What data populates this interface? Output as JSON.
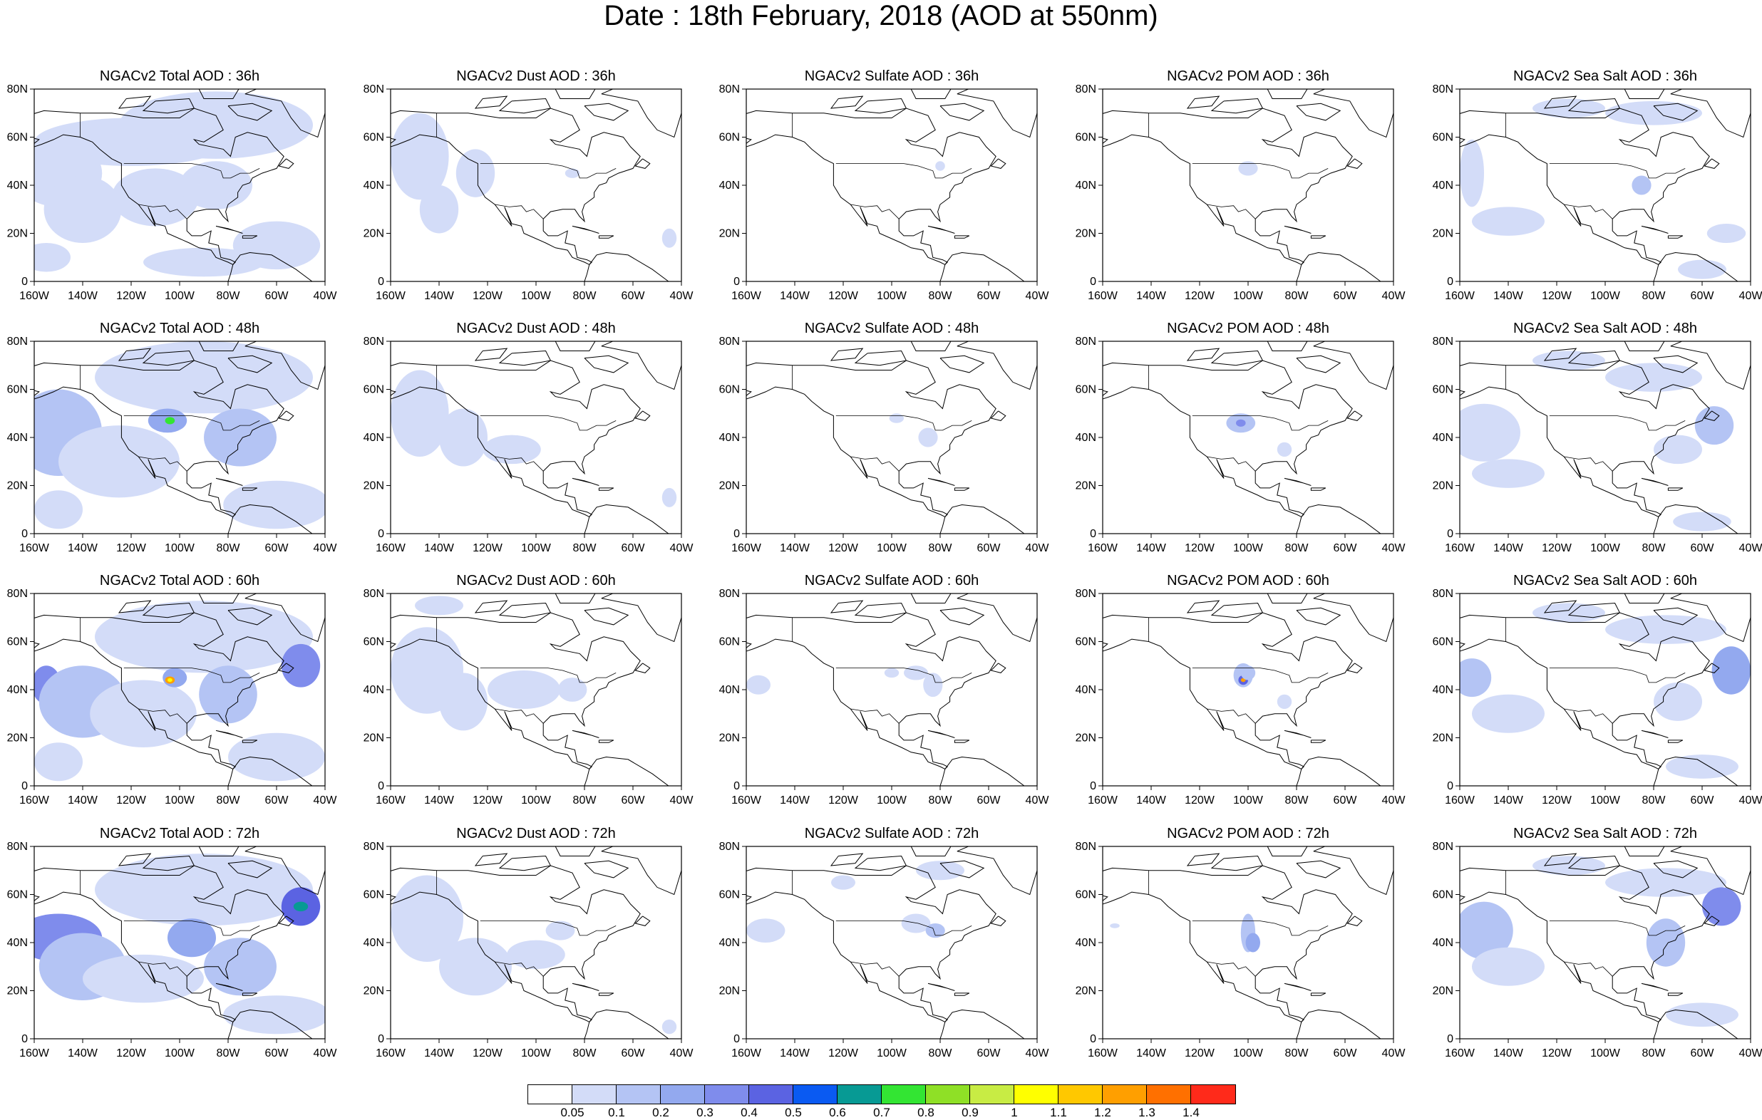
{
  "main_title": "Date : 18th February, 2018 (AOD at 550nm)",
  "rows": [
    "36h",
    "48h",
    "60h",
    "72h"
  ],
  "columns": [
    {
      "key": "total",
      "title_prefix": "NGACv2 Total AOD"
    },
    {
      "key": "dust",
      "title_prefix": "NGACv2 Dust AOD"
    },
    {
      "key": "sulfate",
      "title_prefix": "NGACv2 Sulfate AOD"
    },
    {
      "key": "pom",
      "title_prefix": "NGACv2 POM AOD"
    },
    {
      "key": "seasalt",
      "title_prefix": "NGACv2 Sea Salt AOD",
      "title_prefix_72h": "NGACv2 Sea Salt  AOD"
    }
  ],
  "x_tick_labels": [
    "160W",
    "140W",
    "120W",
    "100W",
    "80W",
    "60W",
    "40W"
  ],
  "y_tick_labels": [
    "0",
    "20N",
    "40N",
    "60N",
    "80N"
  ],
  "colorbar": {
    "colors": [
      "#ffffff",
      "#d3dcf8",
      "#b4c4f4",
      "#93a9ef",
      "#7f8cec",
      "#5b63e2",
      "#0a5af2",
      "#079a94",
      "#33e533",
      "#8fe026",
      "#c8ec44",
      "#ffff00",
      "#ffc800",
      "#ff9f00",
      "#ff7000",
      "#ff2a1a"
    ],
    "labels": [
      "0.05",
      "0.1",
      "0.2",
      "0.3",
      "0.4",
      "0.5",
      "0.6",
      "0.7",
      "0.8",
      "0.9",
      "1",
      "1.1",
      "1.2",
      "1.3",
      "1.4"
    ]
  },
  "coastline_color": "#000000",
  "background_color": "#ffffff"
}
